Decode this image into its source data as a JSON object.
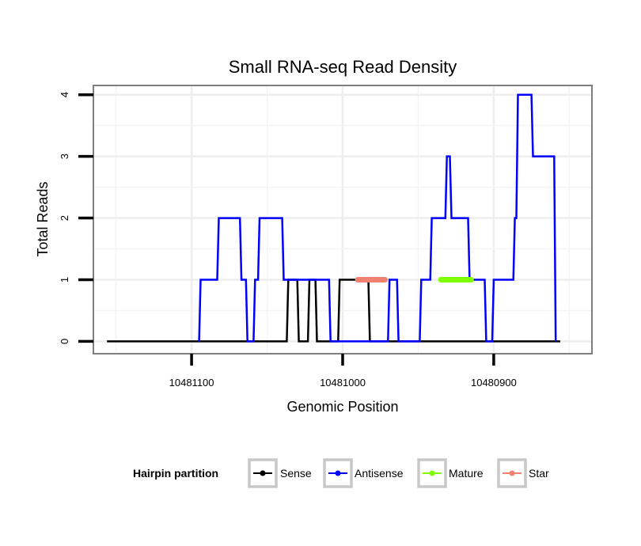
{
  "chart_data": {
    "type": "line",
    "title": "Small RNA-seq Read Density",
    "xlabel": "Genomic Position",
    "ylabel": "Total Reads",
    "xlim": [
      10481165,
      10480835
    ],
    "ylim": [
      -0.2,
      4.15
    ],
    "x_reversed": true,
    "grid": true,
    "x_ticks": [
      10481100,
      10481000,
      10480900
    ],
    "x_tick_labels": [
      "10481100",
      "10481000",
      "10480900"
    ],
    "y_ticks": [
      0,
      1,
      2,
      3,
      4
    ],
    "y_tick_labels": [
      "0",
      "1",
      "2",
      "3",
      "4"
    ],
    "legend": {
      "title": "Hairpin partition",
      "placement": "bottom",
      "entries": [
        "Sense",
        "Antisense",
        "Mature",
        "Star"
      ]
    },
    "series": [
      {
        "name": "Sense",
        "color": "#000000",
        "points": [
          [
            10481156,
            0
          ],
          [
            10481037,
            0
          ],
          [
            10481036,
            1
          ],
          [
            10481030,
            1
          ],
          [
            10481029,
            0
          ],
          [
            10481023,
            0
          ],
          [
            10481022,
            1
          ],
          [
            10481018,
            1
          ],
          [
            10481017,
            0
          ],
          [
            10481003,
            0
          ],
          [
            10481002,
            1
          ],
          [
            10480983,
            1
          ],
          [
            10480982,
            0
          ],
          [
            10480856,
            0
          ]
        ]
      },
      {
        "name": "Antisense",
        "color": "#0000ff",
        "points": [
          [
            10481095,
            0
          ],
          [
            10481094,
            1
          ],
          [
            10481083,
            1
          ],
          [
            10481082,
            2
          ],
          [
            10481068,
            2
          ],
          [
            10481067,
            1
          ],
          [
            10481064,
            1
          ],
          [
            10481063,
            0
          ],
          [
            10481059,
            0
          ],
          [
            10481058,
            1
          ],
          [
            10481056,
            1
          ],
          [
            10481055,
            2
          ],
          [
            10481040,
            2
          ],
          [
            10481039,
            1
          ],
          [
            10481009,
            1
          ],
          [
            10481008,
            0
          ],
          [
            10480970,
            0
          ],
          [
            10480969,
            1
          ],
          [
            10480964,
            1
          ],
          [
            10480963,
            0
          ],
          [
            10480949,
            0
          ],
          [
            10480948,
            1
          ],
          [
            10480942,
            1
          ],
          [
            10480941,
            2
          ],
          [
            10480932,
            2
          ],
          [
            10480931,
            3
          ],
          [
            10480929,
            3
          ],
          [
            10480928,
            2
          ],
          [
            10480917,
            2
          ],
          [
            10480916,
            1
          ],
          [
            10480906,
            1
          ],
          [
            10480905,
            0
          ],
          [
            10480901,
            0
          ],
          [
            10480900,
            1
          ],
          [
            10480887,
            1
          ],
          [
            10480886,
            2
          ],
          [
            10480885,
            2
          ],
          [
            10480884,
            4
          ],
          [
            10480875,
            4
          ],
          [
            10480874,
            3
          ],
          [
            10480860,
            3
          ],
          [
            10480859,
            0
          ]
        ]
      },
      {
        "name": "Mature",
        "color": "#80ff00",
        "points": [
          [
            10480935,
            1
          ],
          [
            10480915,
            1
          ]
        ]
      },
      {
        "name": "Star",
        "color": "#f08070",
        "points": [
          [
            10480990,
            1
          ],
          [
            10480972,
            1
          ]
        ]
      }
    ]
  }
}
